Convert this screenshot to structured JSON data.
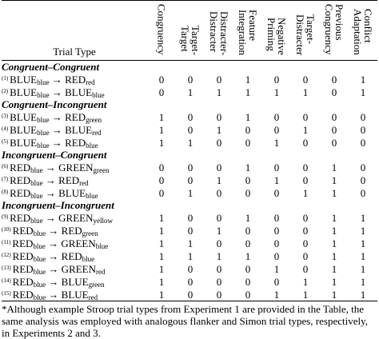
{
  "table": {
    "trial_type_header": "Trial Type",
    "arrow": "→",
    "columns": [
      [
        "Congruency"
      ],
      [
        "Target-",
        "Target"
      ],
      [
        "Distracter-",
        "Distracter"
      ],
      [
        "Feature",
        "Integration"
      ],
      [
        "Negative",
        "Priming"
      ],
      [
        "Target-",
        "Distracter"
      ],
      [
        "Previous",
        "Congruency"
      ],
      [
        "Conflict",
        "Adaptation"
      ]
    ],
    "groups": [
      {
        "title": "Congruent–Congruent",
        "rows": [
          {
            "num": "(1)",
            "from": "BLUE",
            "from_ink": "blue",
            "to": "RED",
            "to_ink": "red",
            "values": [
              0,
              0,
              0,
              1,
              0,
              0,
              0,
              1
            ]
          },
          {
            "num": "(2)",
            "from": "BLUE",
            "from_ink": "blue",
            "to": "BLUE",
            "to_ink": "blue",
            "values": [
              0,
              1,
              1,
              1,
              1,
              1,
              0,
              1
            ]
          }
        ]
      },
      {
        "title": "Congruent–Incongruent",
        "rows": [
          {
            "num": "(3)",
            "from": "BLUE",
            "from_ink": "blue",
            "to": "RED",
            "to_ink": "green",
            "values": [
              1,
              0,
              0,
              1,
              0,
              0,
              0,
              0
            ]
          },
          {
            "num": "(4)",
            "from": "BLUE",
            "from_ink": "blue",
            "to": "BLUE",
            "to_ink": "red",
            "values": [
              1,
              0,
              1,
              0,
              0,
              1,
              0,
              0
            ]
          },
          {
            "num": "(5)",
            "from": "BLUE",
            "from_ink": "blue",
            "to": "RED",
            "to_ink": "blue",
            "values": [
              1,
              1,
              0,
              0,
              1,
              0,
              0,
              0
            ]
          }
        ]
      },
      {
        "title": "Incongruent–Congruent",
        "rows": [
          {
            "num": "(6)",
            "from": "RED",
            "from_ink": "blue",
            "to": "GREEN",
            "to_ink": "green",
            "values": [
              0,
              0,
              0,
              1,
              0,
              0,
              1,
              0
            ]
          },
          {
            "num": "(7)",
            "from": "RED",
            "from_ink": "blue",
            "to": "RED",
            "to_ink": "red",
            "values": [
              0,
              0,
              1,
              0,
              1,
              0,
              1,
              0
            ]
          },
          {
            "num": "(8)",
            "from": "RED",
            "from_ink": "blue",
            "to": "BLUE",
            "to_ink": "blue",
            "values": [
              0,
              1,
              0,
              0,
              0,
              1,
              1,
              0
            ]
          }
        ]
      },
      {
        "title": "Incongruent–Incongruent",
        "rows": [
          {
            "num": "(9)",
            "from": "RED",
            "from_ink": "blue",
            "to": "GREEN",
            "to_ink": "yellow",
            "values": [
              1,
              0,
              0,
              1,
              0,
              0,
              1,
              1
            ]
          },
          {
            "num": "(10)",
            "from": "RED",
            "from_ink": "blue",
            "to": "RED",
            "to_ink": "green",
            "values": [
              1,
              0,
              1,
              0,
              0,
              0,
              1,
              1
            ]
          },
          {
            "num": "(11)",
            "from": "RED",
            "from_ink": "blue",
            "to": "GREEN",
            "to_ink": "blue",
            "values": [
              1,
              1,
              0,
              0,
              0,
              0,
              1,
              1
            ]
          },
          {
            "num": "(12)",
            "from": "RED",
            "from_ink": "blue",
            "to": "RED",
            "to_ink": "blue",
            "values": [
              1,
              1,
              1,
              1,
              0,
              0,
              1,
              1
            ]
          },
          {
            "num": "(13)",
            "from": "RED",
            "from_ink": "blue",
            "to": "GREEN",
            "to_ink": "red",
            "values": [
              1,
              0,
              0,
              0,
              1,
              0,
              1,
              1
            ]
          },
          {
            "num": "(14)",
            "from": "RED",
            "from_ink": "blue",
            "to": "BLUE",
            "to_ink": "green",
            "values": [
              1,
              0,
              0,
              0,
              0,
              1,
              1,
              1
            ]
          },
          {
            "num": "(15)",
            "from": "RED",
            "from_ink": "blue",
            "to": "BLUE",
            "to_ink": "red",
            "values": [
              1,
              0,
              0,
              0,
              1,
              1,
              1,
              1
            ]
          }
        ]
      }
    ],
    "footnote": "*Although example Stroop trial types from Experiment 1 are provided in the Table, the same analysis was employed with analogous flanker and Simon trial types, respectively, in Experiments 2 and 3."
  }
}
